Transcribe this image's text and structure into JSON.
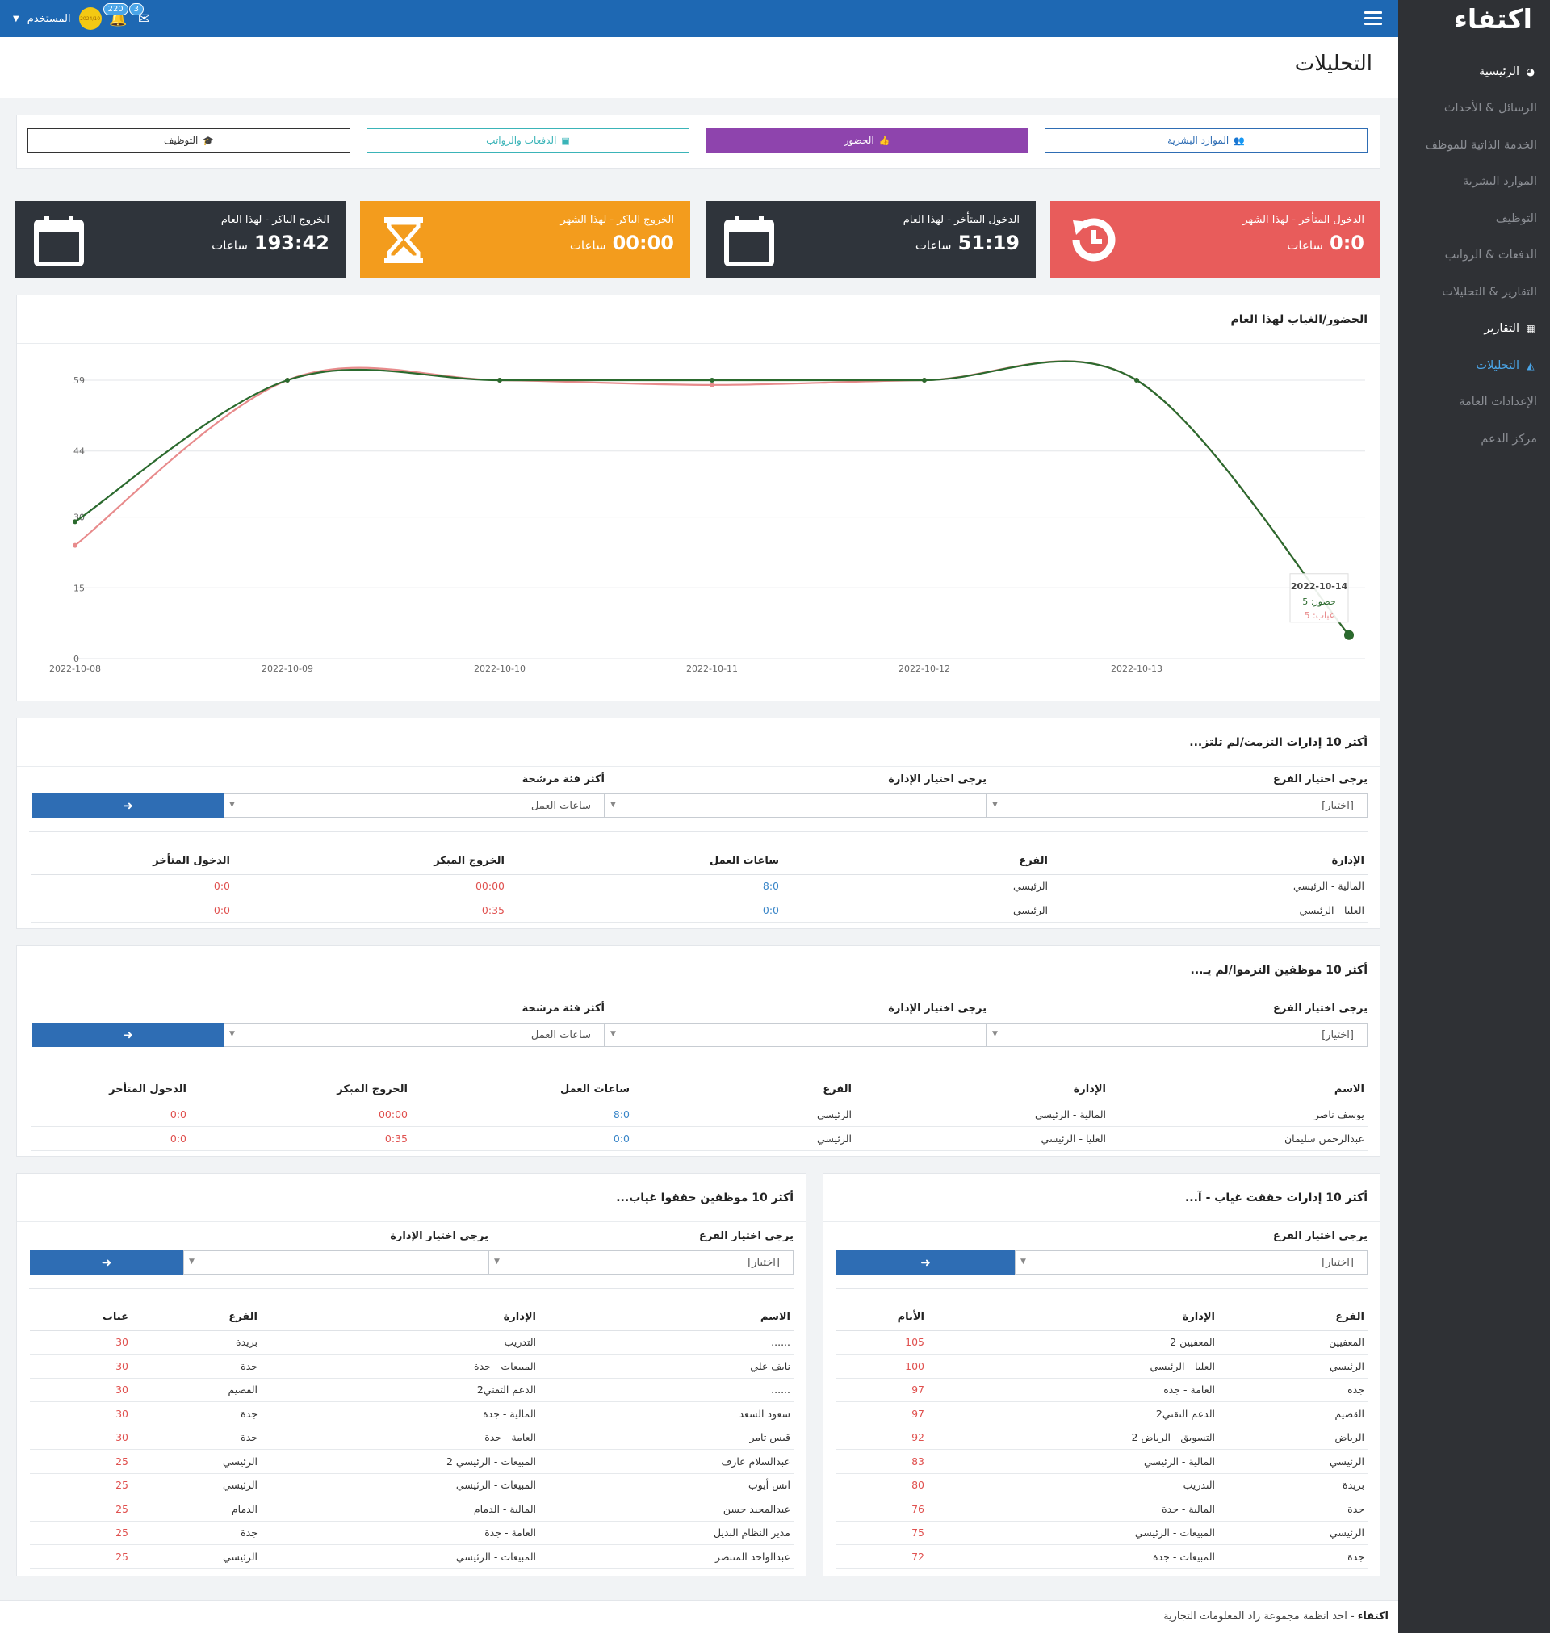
{
  "app": {
    "logo": "اكتفاء",
    "page_title": "التحليلات"
  },
  "topbar": {
    "user_label": "المستخدم",
    "coin_text": "2024/10",
    "notif_count": "220",
    "msg_count": "3"
  },
  "sidebar": {
    "items": [
      {
        "label": "الرئيسية",
        "icon": "dashboard-icon"
      },
      {
        "label": "الرسائل & الأحداث"
      },
      {
        "label": "الخدمة الذاتية للموظف"
      },
      {
        "label": "الموارد البشرية"
      },
      {
        "label": "التوظيف"
      },
      {
        "label": "الدفعات & الرواتب"
      },
      {
        "label": "التقارير & التحليلات"
      },
      {
        "label": "التقارير",
        "icon": "table-icon"
      },
      {
        "label": "التحليلات",
        "icon": "area-chart-icon"
      },
      {
        "label": "الإعدادات العامة"
      },
      {
        "label": "مركز الدعم"
      }
    ]
  },
  "tabs": [
    {
      "label": "الموارد البشرية",
      "icon": "users-icon",
      "style": "outline-blue"
    },
    {
      "label": "الحضور",
      "icon": "thumbs-up-icon",
      "style": "purple"
    },
    {
      "label": "الدفعات والرواتب",
      "icon": "money-icon",
      "style": "outline-teal"
    },
    {
      "label": "التوظيف",
      "icon": "graduation-cap-icon",
      "style": "outline-dark"
    }
  ],
  "stats": [
    {
      "title": "الدخول المتأخر - لهذا الشهر",
      "value": "0:0",
      "unit": "ساعات",
      "color": "#e85c5b",
      "icon": "history-icon"
    },
    {
      "title": "الدخول المتأخر - لهذا العام",
      "value": "51:19",
      "unit": "ساعات",
      "color": "#2f343b",
      "icon": "calendar-icon"
    },
    {
      "title": "الخروج الباكر - لهذا الشهر",
      "value": "00:00",
      "unit": "ساعات",
      "color": "#f39c1d",
      "icon": "hourglass-icon"
    },
    {
      "title": "الخروج الباكر - لهذا العام",
      "value": "193:42",
      "unit": "ساعات",
      "color": "#2f343b",
      "icon": "calendar-icon"
    }
  ],
  "chart": {
    "title": "الحضور/الغياب لهذا العام",
    "tooltip": {
      "date": "2022-10-14",
      "line1": "حضور: 5",
      "line2": "غياب: 5"
    }
  },
  "chart_data": {
    "type": "line",
    "x": [
      "2022-10-08",
      "2022-10-09",
      "2022-10-10",
      "2022-10-11",
      "2022-10-12",
      "2022-10-13",
      "2022-10-14"
    ],
    "series": [
      {
        "name": "حضور",
        "color": "#2b6a2e",
        "values": [
          29,
          59,
          59,
          59,
          59,
          59,
          5
        ]
      },
      {
        "name": "غياب",
        "color": "#e88b8c",
        "values": [
          24,
          59,
          59,
          58,
          59,
          59,
          5
        ]
      }
    ],
    "yticks": [
      0,
      15,
      30,
      44,
      59
    ],
    "ylim": [
      0,
      59
    ],
    "grid": true
  },
  "dept_table": {
    "title": "أكثر 10 إدارات التزمت/لم تلتز...",
    "filters": {
      "branch_label": "يرجى اختيار الفرع",
      "branch_value": "[اختيار]",
      "dept_label": "يرجى اختيار الإدارة",
      "dept_value": "",
      "category_label": "أكثر فئة مرشحة",
      "category_value": "ساعات العمل"
    },
    "columns": [
      "الإدارة",
      "الفرع",
      "ساعات العمل",
      "الخروج المبكر",
      "الدخول المتأخر"
    ],
    "rows": [
      [
        "المالية - الرئيسي",
        "الرئيسي",
        "8:0",
        "00:00",
        "0:0"
      ],
      [
        "العليا - الرئيسي",
        "الرئيسي",
        "0:0",
        "0:35",
        "0:0"
      ]
    ]
  },
  "emp_table": {
    "title": "أكثر 10 موظفين التزموا/لم يـ...",
    "filters": {
      "branch_label": "يرجى اختيار الفرع",
      "branch_value": "[اختيار]",
      "dept_label": "يرجى اختيار الإدارة",
      "dept_value": "",
      "category_label": "أكثر فئة مرشحة",
      "category_value": "ساعات العمل"
    },
    "columns": [
      "الاسم",
      "الإدارة",
      "الفرع",
      "ساعات العمل",
      "الخروج المبكر",
      "الدخول المتأخر"
    ],
    "rows": [
      [
        "يوسف ناصر",
        "المالية - الرئيسي",
        "الرئيسي",
        "8:0",
        "00:00",
        "0:0"
      ],
      [
        "عبدالرحمن سليمان",
        "العليا - الرئيسي",
        "الرئيسي",
        "0:0",
        "0:35",
        "0:0"
      ]
    ]
  },
  "absent_dept": {
    "title": "أكثر 10 إدارات حققت غياب - آ...",
    "filters": {
      "branch_label": "يرجى اختيار الفرع",
      "branch_value": "[اختيار]"
    },
    "columns": [
      "الفرع",
      "الإدارة",
      "الأيام"
    ],
    "rows": [
      [
        "المعفيين",
        "المعفيين 2",
        "105"
      ],
      [
        "الرئيسي",
        "العليا - الرئيسي",
        "100"
      ],
      [
        "جدة",
        "العامة - جدة",
        "97"
      ],
      [
        "القصيم",
        "الدعم التقني2",
        "97"
      ],
      [
        "الرياض",
        "التسويق - الرياض 2",
        "92"
      ],
      [
        "الرئيسي",
        "المالية - الرئيسي",
        "83"
      ],
      [
        "بريدة",
        "التدريب",
        "80"
      ],
      [
        "جدة",
        "المالية - جدة",
        "76"
      ],
      [
        "الرئيسي",
        "المبيعات - الرئيسي",
        "75"
      ],
      [
        "جدة",
        "المبيعات - جدة",
        "72"
      ]
    ]
  },
  "absent_emp": {
    "title": "أكثر 10 موظفين حققوا غياب...",
    "filters": {
      "branch_label": "يرجى اختيار الفرع",
      "branch_value": "[اختيار]",
      "dept_label": "يرجى اختيار الإدارة",
      "dept_value": ""
    },
    "columns": [
      "الاسم",
      "الإدارة",
      "الفرع",
      "غياب"
    ],
    "rows": [
      [
        "......",
        "التدريب",
        "بريدة",
        "30"
      ],
      [
        "نايف علي",
        "المبيعات - جدة",
        "جدة",
        "30"
      ],
      [
        "......",
        "الدعم التقني2",
        "القصيم",
        "30"
      ],
      [
        "سعود السعد",
        "المالية - جدة",
        "جدة",
        "30"
      ],
      [
        "قيس تامر",
        "العامة - جدة",
        "جدة",
        "30"
      ],
      [
        "عبدالسلام عارف",
        "المبيعات - الرئيسي 2",
        "الرئيسي",
        "25"
      ],
      [
        "انس أيوب",
        "المبيعات - الرئيسي",
        "الرئيسي",
        "25"
      ],
      [
        "عبدالمجيد حسن",
        "المالية - الدمام",
        "الدمام",
        "25"
      ],
      [
        "مدير النظام البديل",
        "العامة - جدة",
        "جدة",
        "25"
      ],
      [
        "عبدالواحد المنتصر",
        "المبيعات - الرئيسي",
        "الرئيسي",
        "25"
      ]
    ]
  },
  "footer": {
    "brand": "اكتفاء",
    "text": " - احد انظمة مجموعة زاد المعلومات التجارية"
  }
}
